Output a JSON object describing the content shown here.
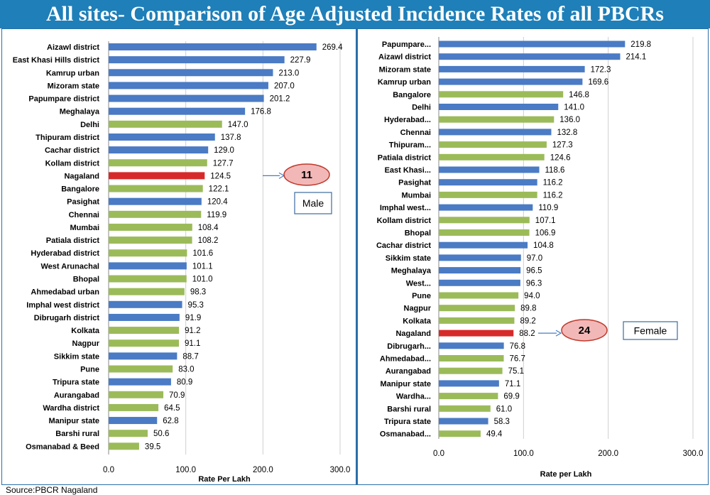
{
  "title": "All sites- Comparison of Age Adjusted Incidence Rates of all PBCRs",
  "source": "Source:PBCR Nagaland",
  "colors": {
    "blue": "#4a7bc4",
    "green": "#9bbb59",
    "red": "#d62a2a",
    "title_bg": "#1f7fb8"
  },
  "chart_data": [
    {
      "type": "bar",
      "orientation": "horizontal",
      "xlabel": "Rate Per Lakh",
      "xlim": [
        0,
        300
      ],
      "ticks": [
        "0.0",
        "100.0",
        "200.0",
        "300.0"
      ],
      "grid": true,
      "annotation": {
        "rank": "11",
        "label": "Male"
      },
      "categories": [
        "Aizawl district",
        "East Khasi Hills district",
        "Kamrup urban",
        "Mizoram state",
        "Papumpare district",
        "Meghalaya",
        "Delhi",
        "Thipuram district",
        "Cachar district",
        "Kollam district",
        "Nagaland",
        "Bangalore",
        "Pasighat",
        "Chennai",
        "Mumbai",
        "Patiala district",
        "Hyderabad district",
        "West Arunachal",
        "Bhopal",
        "Ahmedabad urban",
        "Imphal west district",
        "Dibrugarh district",
        "Kolkata",
        "Nagpur",
        "Sikkim state",
        "Pune",
        "Tripura state",
        "Aurangabad",
        "Wardha district",
        "Manipur state",
        "Barshi rural",
        "Osmanabad & Beed"
      ],
      "values": [
        269.4,
        227.9,
        213.0,
        207.0,
        201.2,
        176.8,
        147.0,
        137.8,
        129.0,
        127.7,
        124.5,
        122.1,
        120.4,
        119.9,
        108.4,
        108.2,
        101.6,
        101.1,
        101.0,
        98.3,
        95.3,
        91.9,
        91.2,
        91.1,
        88.7,
        83.0,
        80.9,
        70.9,
        64.5,
        62.8,
        50.6,
        39.5
      ],
      "labels": [
        "269.4",
        "227.9",
        "213.0",
        "207.0",
        "201.2",
        "176.8",
        "147.0",
        "137.8",
        "129.0",
        "127.7",
        "124.5",
        "122.1",
        "120.4",
        "119.9",
        "108.4",
        "108.2",
        "101.6",
        "101.1",
        "101.0",
        "98.3",
        "95.3",
        "91.9",
        "91.2",
        "91.1",
        "88.7",
        "83.0",
        "80.9",
        "70.9",
        "64.5",
        "62.8",
        "50.6",
        "39.5"
      ],
      "bar_colors": [
        "blue",
        "blue",
        "blue",
        "blue",
        "blue",
        "blue",
        "green",
        "blue",
        "blue",
        "green",
        "red",
        "green",
        "blue",
        "green",
        "green",
        "green",
        "green",
        "blue",
        "green",
        "green",
        "blue",
        "blue",
        "green",
        "green",
        "blue",
        "green",
        "blue",
        "green",
        "green",
        "blue",
        "green",
        "green"
      ]
    },
    {
      "type": "bar",
      "orientation": "horizontal",
      "xlabel": "Rate per Lakh",
      "xlim": [
        0,
        300
      ],
      "ticks": [
        "0.0",
        "100.0",
        "200.0",
        "300.0"
      ],
      "grid": true,
      "annotation": {
        "rank": "24",
        "label": "Female"
      },
      "categories": [
        "Papumpare...",
        "Aizawl district",
        "Mizoram state",
        "Kamrup urban",
        "Bangalore",
        "Delhi",
        "Hyderabad...",
        "Chennai",
        "Thipuram...",
        "Patiala district",
        "East Khasi...",
        "Pasighat",
        "Mumbai",
        "Imphal west...",
        "Kollam district",
        "Bhopal",
        "Cachar district",
        "Sikkim state",
        "Meghalaya",
        "West...",
        "Pune",
        "Nagpur",
        "Kolkata",
        "Nagaland",
        "Dibrugarh...",
        "Ahmedabad...",
        "Aurangabad",
        "Manipur state",
        "Wardha...",
        "Barshi rural",
        "Tripura state",
        "Osmanabad..."
      ],
      "values": [
        219.8,
        214.1,
        172.3,
        169.6,
        146.8,
        141.0,
        136.0,
        132.8,
        127.3,
        124.6,
        118.6,
        116.2,
        116.2,
        110.9,
        107.1,
        106.9,
        104.8,
        97.0,
        96.5,
        96.3,
        94.0,
        89.8,
        89.2,
        88.2,
        76.8,
        76.7,
        75.1,
        71.1,
        69.9,
        61.0,
        58.3,
        49.4
      ],
      "labels": [
        "219.8",
        "214.1",
        "172.3",
        "169.6",
        "146.8",
        "141.0",
        "136.0",
        "132.8",
        "127.3",
        "124.6",
        "118.6",
        "116.2",
        "116.2",
        "110.9",
        "107.1",
        "106.9",
        "104.8",
        "97.0",
        "96.5",
        "96.3",
        "94.0",
        "89.8",
        "89.2",
        "88.2",
        "76.8",
        "76.7",
        "75.1",
        "71.1",
        "69.9",
        "61.0",
        "58.3",
        "49.4"
      ],
      "bar_colors": [
        "blue",
        "blue",
        "blue",
        "blue",
        "green",
        "blue",
        "green",
        "blue",
        "green",
        "green",
        "blue",
        "blue",
        "green",
        "blue",
        "green",
        "green",
        "blue",
        "blue",
        "blue",
        "blue",
        "green",
        "green",
        "green",
        "red",
        "blue",
        "green",
        "green",
        "blue",
        "green",
        "green",
        "blue",
        "green"
      ]
    }
  ]
}
